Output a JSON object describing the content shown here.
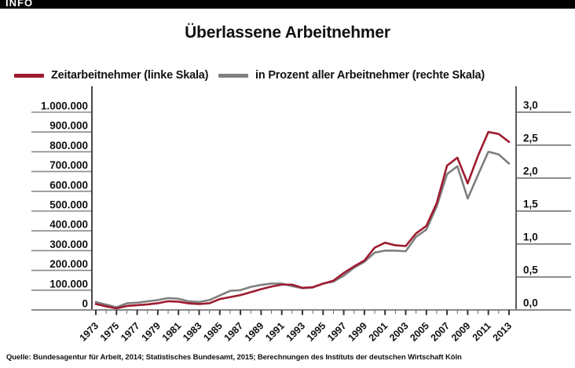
{
  "header": {
    "tag": "INFO"
  },
  "title": "Überlassene Arbeitnehmer",
  "legend": [
    {
      "label": "Zeitarbeitnehmer (linke Skala)",
      "color": "#9e1b30"
    },
    {
      "label": "in Prozent aller Arbeitnehmer (rechte Skala)",
      "color": "#7f7f7f"
    }
  ],
  "source": "Quelle: Bundesagentur für Arbeit, 2014; Statistisches Bundesamt, 2015; Berechnungen des Instituts der deutschen Wirtschaft Köln",
  "chart_data": {
    "type": "line",
    "title": "Überlassene Arbeitnehmer",
    "grid": false,
    "legend_position": "top",
    "x": [
      1973,
      1974,
      1975,
      1976,
      1977,
      1978,
      1979,
      1980,
      1981,
      1982,
      1983,
      1984,
      1985,
      1986,
      1987,
      1988,
      1989,
      1990,
      1991,
      1992,
      1993,
      1994,
      1995,
      1996,
      1997,
      1998,
      1999,
      2000,
      2001,
      2002,
      2003,
      2004,
      2005,
      2006,
      2007,
      2008,
      2009,
      2010,
      2011,
      2012,
      2013
    ],
    "xtick_labels": [
      "1973",
      "1975",
      "1977",
      "1979",
      "1981",
      "1983",
      "1985",
      "1987",
      "1989",
      "1991",
      "1993",
      "1995",
      "1997",
      "1999",
      "2001",
      "2003",
      "2005",
      "2007",
      "2009",
      "2011",
      "2013"
    ],
    "left_axis": {
      "min": 0,
      "max": 1000000,
      "tick_labels": [
        "1.000.000",
        "900.000",
        "800.000",
        "700.000",
        "600.000",
        "500.000",
        "400.000",
        "300.000",
        "200.000",
        "100.000",
        "0"
      ]
    },
    "right_axis": {
      "min": 0,
      "max": 3,
      "tick_labels": [
        "3,0",
        "2,5",
        "2,0",
        "1,5",
        "1,0",
        "0,5",
        "0,0"
      ]
    },
    "series": [
      {
        "name": "Zeitarbeitnehmer (linke Skala)",
        "axis": "left",
        "color": "#9e1b30",
        "values": [
          30000,
          18000,
          8000,
          20000,
          24000,
          28000,
          34000,
          44000,
          42000,
          33000,
          30000,
          34000,
          55000,
          65000,
          75000,
          90000,
          105000,
          118000,
          128000,
          128000,
          112000,
          115000,
          133000,
          148000,
          187000,
          220000,
          250000,
          315000,
          340000,
          327000,
          323000,
          387000,
          425000,
          540000,
          730000,
          770000,
          640000,
          780000,
          900000,
          890000,
          850000
        ]
      },
      {
        "name": "in Prozent aller Arbeitnehmer (rechte Skala)",
        "axis": "right",
        "color": "#7f7f7f",
        "values": [
          0.12,
          0.08,
          0.04,
          0.1,
          0.11,
          0.13,
          0.15,
          0.18,
          0.17,
          0.13,
          0.12,
          0.15,
          0.22,
          0.29,
          0.3,
          0.35,
          0.38,
          0.4,
          0.4,
          0.36,
          0.33,
          0.34,
          0.4,
          0.43,
          0.52,
          0.64,
          0.73,
          0.87,
          0.9,
          0.9,
          0.89,
          1.11,
          1.22,
          1.57,
          2.06,
          2.18,
          1.69,
          2.05,
          2.4,
          2.36,
          2.22
        ]
      }
    ]
  }
}
